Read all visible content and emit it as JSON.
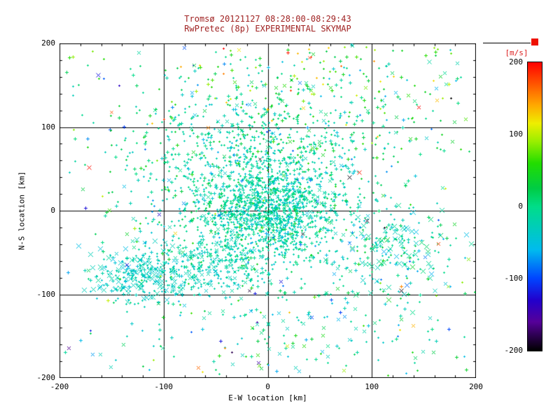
{
  "colors": {
    "title_text": "#a02222",
    "colorbar_label": "#dd2222",
    "red_square": "#ee1100",
    "axis": "#000000",
    "background": "#ffffff"
  },
  "chart_data": {
    "type": "scatter",
    "title": "Tromsø 20121127 08:28:00-08:29:43",
    "subtitle": "RwPretec (8p) EXPERIMENTAL SKYMAP",
    "xlabel": "E-W location [km]",
    "ylabel": "N-S location [km]",
    "xlim": [
      -200,
      200
    ],
    "ylim": [
      -200,
      200
    ],
    "xticks": [
      -200,
      -100,
      0,
      100,
      200
    ],
    "yticks": [
      -200,
      -100,
      0,
      100,
      200
    ],
    "grid_lines": [
      -100,
      0,
      100
    ],
    "grid": "on",
    "marker": "cross",
    "colorbar": {
      "label": "[m/s]",
      "ticks": [
        200,
        100,
        0,
        -100,
        -200
      ],
      "range": [
        -200,
        200
      ],
      "position": "right"
    },
    "colormap_stops": [
      {
        "t": 0.0,
        "color": "#000000"
      },
      {
        "t": 0.1,
        "color": "#550099"
      },
      {
        "t": 0.175,
        "color": "#2200cc"
      },
      {
        "t": 0.25,
        "color": "#0044ff"
      },
      {
        "t": 0.35,
        "color": "#00bbee"
      },
      {
        "t": 0.425,
        "color": "#00ccbb"
      },
      {
        "t": 0.5,
        "color": "#00dd88"
      },
      {
        "t": 0.5625,
        "color": "#00cc44"
      },
      {
        "t": 0.65,
        "color": "#22dd00"
      },
      {
        "t": 0.725,
        "color": "#99ee00"
      },
      {
        "t": 0.7875,
        "color": "#eeee00"
      },
      {
        "t": 0.85,
        "color": "#ffaa00"
      },
      {
        "t": 0.925,
        "color": "#ff5500"
      },
      {
        "t": 1.0,
        "color": "#ff0000"
      }
    ],
    "seed": 20121127,
    "point_clusters": [
      {
        "count": 900,
        "cx": 2,
        "cy": -5,
        "sx": 30,
        "sy": 30,
        "v_mean": -18,
        "v_sd": 16,
        "x_frac": 0.06
      },
      {
        "count": 1000,
        "cx": -15,
        "cy": 20,
        "sx": 62,
        "sy": 55,
        "v_mean": -10,
        "v_sd": 26,
        "x_frac": 0.06
      },
      {
        "count": 320,
        "cx": 10,
        "cy": 95,
        "sx": 70,
        "sy": 40,
        "v_mean": 0,
        "v_sd": 35,
        "x_frac": 0.08
      },
      {
        "count": 150,
        "cx": 45,
        "cy": 160,
        "sx": 85,
        "sy": 28,
        "v_mean": 55,
        "v_sd": 55,
        "x_frac": 0.12
      },
      {
        "count": 210,
        "cx": -125,
        "cy": -78,
        "sx": 22,
        "sy": 17,
        "v_mean": -32,
        "v_sd": 12,
        "x_frac": 0.45,
        "big": true
      },
      {
        "count": 260,
        "cx": -60,
        "cy": -68,
        "sx": 28,
        "sy": 20,
        "v_mean": -24,
        "v_sd": 12,
        "x_frac": 0.25
      },
      {
        "count": 190,
        "cx": 125,
        "cy": -42,
        "sx": 26,
        "sy": 27,
        "v_mean": -18,
        "v_sd": 28,
        "x_frac": 0.4,
        "big": true
      },
      {
        "count": 130,
        "cx": 20,
        "cy": -140,
        "sx": 85,
        "sy": 32,
        "v_mean": -20,
        "v_sd": 28,
        "x_frac": 0.3
      },
      {
        "count": 280,
        "uniform": true,
        "x0": -195,
        "x1": 195,
        "y0": -195,
        "y1": 195,
        "v_mean": -5,
        "v_sd": 70,
        "x_frac": 0.25
      }
    ],
    "outlier_points": [
      {
        "x": -172,
        "y": 52,
        "v": 195,
        "s": 3
      },
      {
        "x": 88,
        "y": 46,
        "v": 190,
        "s": 3
      },
      {
        "x": -150,
        "y": 118,
        "v": 170,
        "s": 2
      },
      {
        "x": 40,
        "y": 183,
        "v": 185,
        "s": 2
      },
      {
        "x": -163,
        "y": 162,
        "v": -120,
        "s": 3
      },
      {
        "x": 78,
        "y": 40,
        "v": -195,
        "s": 3
      },
      {
        "x": 95,
        "y": -12,
        "v": -190,
        "s": 3
      },
      {
        "x": 128,
        "y": -95,
        "v": -195,
        "s": 3
      },
      {
        "x": -18,
        "y": -95,
        "v": -185,
        "s": 2
      },
      {
        "x": 160,
        "y": -95,
        "v": -30,
        "s": 3
      },
      {
        "x": 173,
        "y": -90,
        "v": 80,
        "s": 2
      },
      {
        "x": 155,
        "y": 178,
        "v": -15,
        "s": 3
      },
      {
        "x": -8,
        "y": 62,
        "v": -200,
        "s": 2
      },
      {
        "x": 33,
        "y": -28,
        "v": -195,
        "s": 2
      }
    ]
  }
}
